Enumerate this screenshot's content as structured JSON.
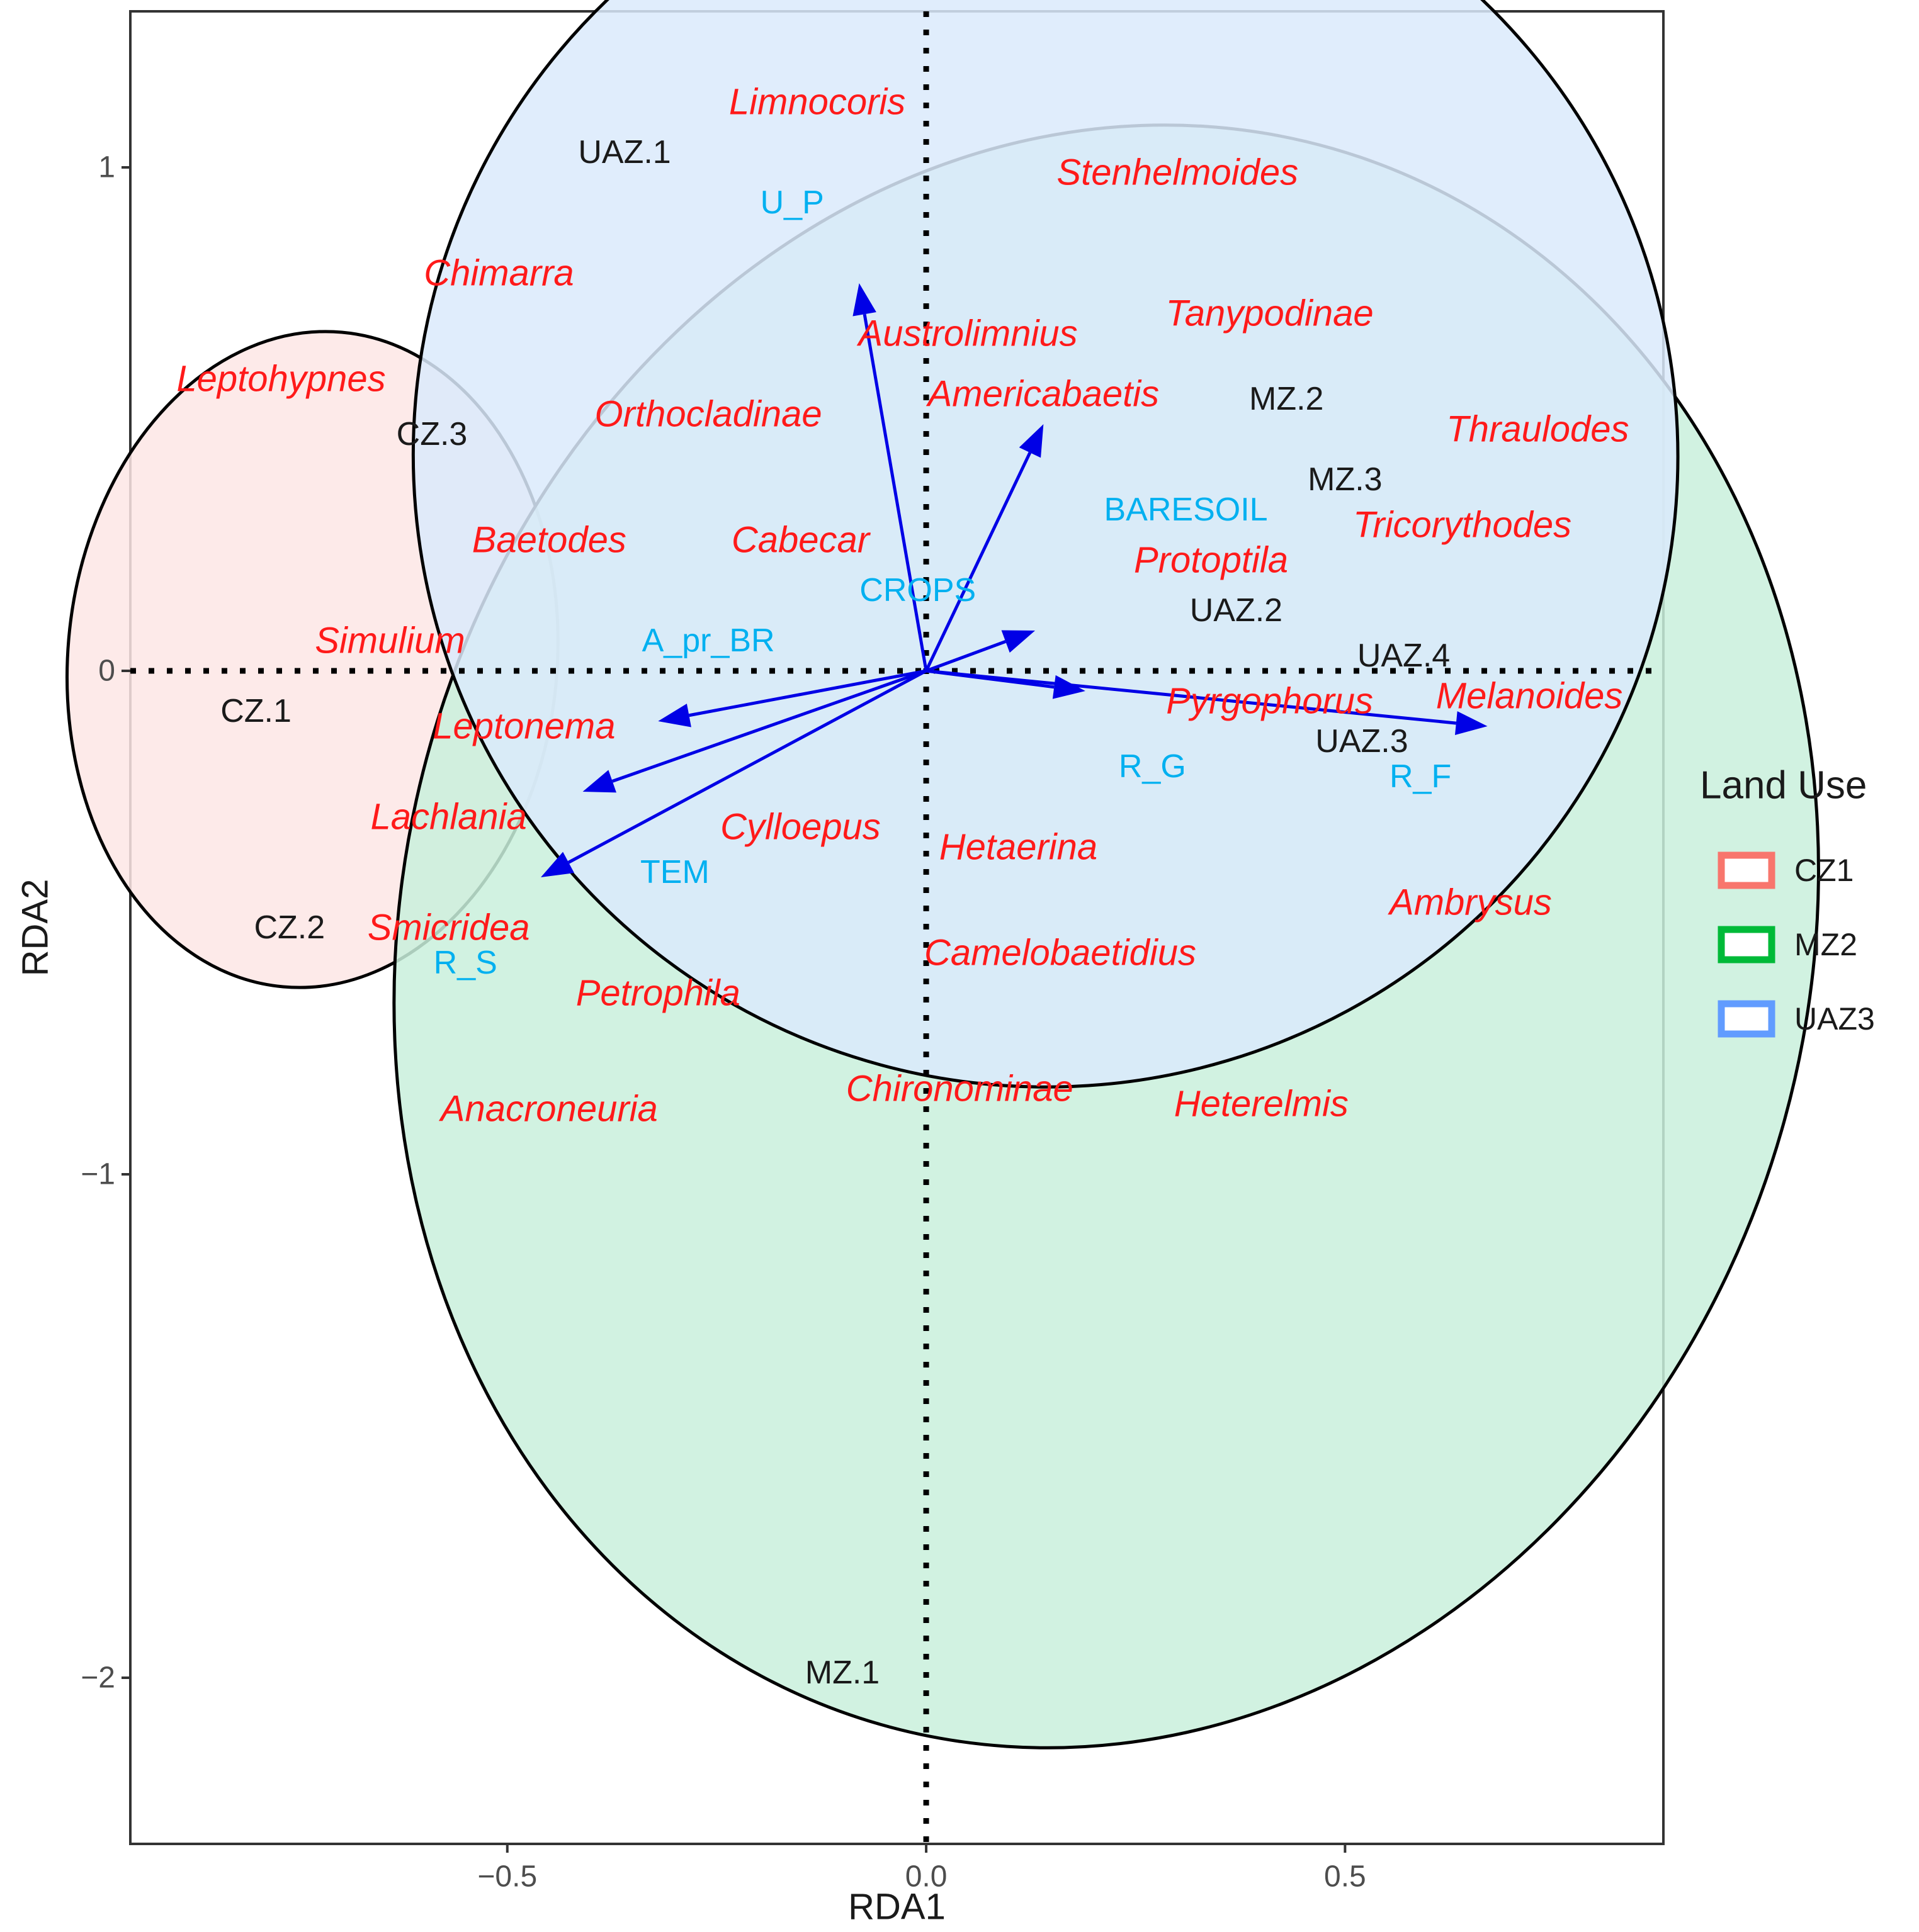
{
  "chart_data": {
    "type": "scatter",
    "title": "",
    "xlabel": "RDA1",
    "ylabel": "RDA2",
    "xlim": [
      -0.95,
      0.88
    ],
    "ylim": [
      -2.33,
      1.31
    ],
    "x_ticks": [
      {
        "value": -0.5,
        "label": "−0.5"
      },
      {
        "value": 0.0,
        "label": "0.0"
      },
      {
        "value": 0.5,
        "label": "0.5"
      }
    ],
    "y_ticks": [
      {
        "value": -2,
        "label": "−2"
      },
      {
        "value": -1,
        "label": "−1"
      },
      {
        "value": 0,
        "label": "0"
      },
      {
        "value": 1,
        "label": "1"
      }
    ],
    "grid": false,
    "reference_lines": {
      "x": 0,
      "y": 0,
      "style": "dotted"
    },
    "legend": {
      "title": "Land Use",
      "position": "right",
      "items": [
        {
          "label": "CZ1",
          "color": "#F8766D"
        },
        {
          "label": "MZ2",
          "color": "#00BA38"
        },
        {
          "label": "UAZ3",
          "color": "#619CFF"
        }
      ]
    },
    "ellipses": [
      {
        "group": "CZ1",
        "fill": "#fde6e5",
        "points": [
          [
            -0.71,
            0.66
          ],
          [
            -0.55,
            0.43
          ],
          [
            -0.78,
            -0.64
          ],
          [
            -0.89,
            -0.36
          ]
        ]
      },
      {
        "group": "MZ2",
        "fill": "#c9f0dc",
        "points": [
          [
            0.51,
            1.05
          ],
          [
            0.55,
            0.72
          ],
          [
            -0.03,
            -2.08
          ],
          [
            -0.17,
            -1.8
          ]
        ]
      },
      {
        "group": "UAZ3",
        "fill": "#dbeafc",
        "points": [
          [
            -0.45,
            1.21
          ],
          [
            -0.52,
            1.02
          ],
          [
            0.73,
            -0.35
          ],
          [
            0.81,
            -0.17
          ]
        ]
      }
    ],
    "sites": [
      {
        "label": "UAZ.1",
        "x": -0.36,
        "y": 1.03
      },
      {
        "label": "CZ.3",
        "x": -0.59,
        "y": 0.47
      },
      {
        "label": "MZ.2",
        "x": 0.43,
        "y": 0.54
      },
      {
        "label": "MZ.3",
        "x": 0.5,
        "y": 0.38
      },
      {
        "label": "UAZ.2",
        "x": 0.37,
        "y": 0.12
      },
      {
        "label": "UAZ.4",
        "x": 0.57,
        "y": 0.03
      },
      {
        "label": "UAZ.3",
        "x": 0.52,
        "y": -0.14
      },
      {
        "label": "CZ.1",
        "x": -0.8,
        "y": -0.08
      },
      {
        "label": "CZ.2",
        "x": -0.76,
        "y": -0.51
      },
      {
        "label": "MZ.1",
        "x": -0.1,
        "y": -1.99
      }
    ],
    "species": [
      {
        "label": "Limnocoris",
        "x": -0.13,
        "y": 1.13
      },
      {
        "label": "Stenhelmoides",
        "x": 0.3,
        "y": 0.99
      },
      {
        "label": "Chimarra",
        "x": -0.51,
        "y": 0.79
      },
      {
        "label": "Tanypodinae",
        "x": 0.41,
        "y": 0.71
      },
      {
        "label": "Austrolimnius",
        "x": 0.05,
        "y": 0.67
      },
      {
        "label": "Leptohypnes",
        "x": -0.77,
        "y": 0.58
      },
      {
        "label": "Americabaetis",
        "x": 0.14,
        "y": 0.55
      },
      {
        "label": "Orthocladinae",
        "x": -0.26,
        "y": 0.51
      },
      {
        "label": "Thraulodes",
        "x": 0.73,
        "y": 0.48
      },
      {
        "label": "Tricorythodes",
        "x": 0.64,
        "y": 0.29
      },
      {
        "label": "Baetodes",
        "x": -0.45,
        "y": 0.26
      },
      {
        "label": "Cabecar",
        "x": -0.15,
        "y": 0.26
      },
      {
        "label": "Protoptila",
        "x": 0.34,
        "y": 0.22
      },
      {
        "label": "Simulium",
        "x": -0.64,
        "y": 0.06
      },
      {
        "label": "Pyrgophorus",
        "x": 0.41,
        "y": -0.06
      },
      {
        "label": "Melanoides",
        "x": 0.72,
        "y": -0.05
      },
      {
        "label": "Leptonema",
        "x": -0.48,
        "y": -0.11
      },
      {
        "label": "Lachlania",
        "x": -0.57,
        "y": -0.29
      },
      {
        "label": "Cylloepus",
        "x": -0.15,
        "y": -0.31
      },
      {
        "label": "Hetaerina",
        "x": 0.11,
        "y": -0.35
      },
      {
        "label": "Ambrysus",
        "x": 0.65,
        "y": -0.46
      },
      {
        "label": "Smicridea",
        "x": -0.57,
        "y": -0.51
      },
      {
        "label": "Camelobaetidius",
        "x": 0.16,
        "y": -0.56
      },
      {
        "label": "Petrophila",
        "x": -0.32,
        "y": -0.64
      },
      {
        "label": "Chironominae",
        "x": 0.04,
        "y": -0.83
      },
      {
        "label": "Heterelmis",
        "x": 0.4,
        "y": -0.86
      },
      {
        "label": "Anacroneuria",
        "x": -0.45,
        "y": -0.87
      }
    ],
    "environmental_labels": [
      {
        "label": "U_P",
        "x": -0.16,
        "y": 0.93
      },
      {
        "label": "BARESOIL",
        "x": 0.31,
        "y": 0.32
      },
      {
        "label": "CROPS",
        "x": -0.01,
        "y": 0.16
      },
      {
        "label": "A_pr_BR",
        "x": -0.26,
        "y": 0.06
      },
      {
        "label": "R_G",
        "x": 0.27,
        "y": -0.19
      },
      {
        "label": "R_F",
        "x": 0.59,
        "y": -0.21
      },
      {
        "label": "TEM",
        "x": -0.3,
        "y": -0.4
      },
      {
        "label": "R_S",
        "x": -0.55,
        "y": -0.58
      }
    ],
    "arrows": [
      {
        "x": -0.08,
        "y": 0.77
      },
      {
        "x": 0.14,
        "y": 0.49
      },
      {
        "x": 0.13,
        "y": 0.08
      },
      {
        "x": 0.19,
        "y": -0.04
      },
      {
        "x": 0.67,
        "y": -0.11
      },
      {
        "x": -0.32,
        "y": -0.1
      },
      {
        "x": -0.41,
        "y": -0.24
      },
      {
        "x": -0.46,
        "y": -0.41
      }
    ],
    "colors": {
      "species": "#ff1a1a",
      "environmental": "#00b0f0",
      "sites": "#1a1a1a",
      "arrows": "#0000e6"
    }
  }
}
